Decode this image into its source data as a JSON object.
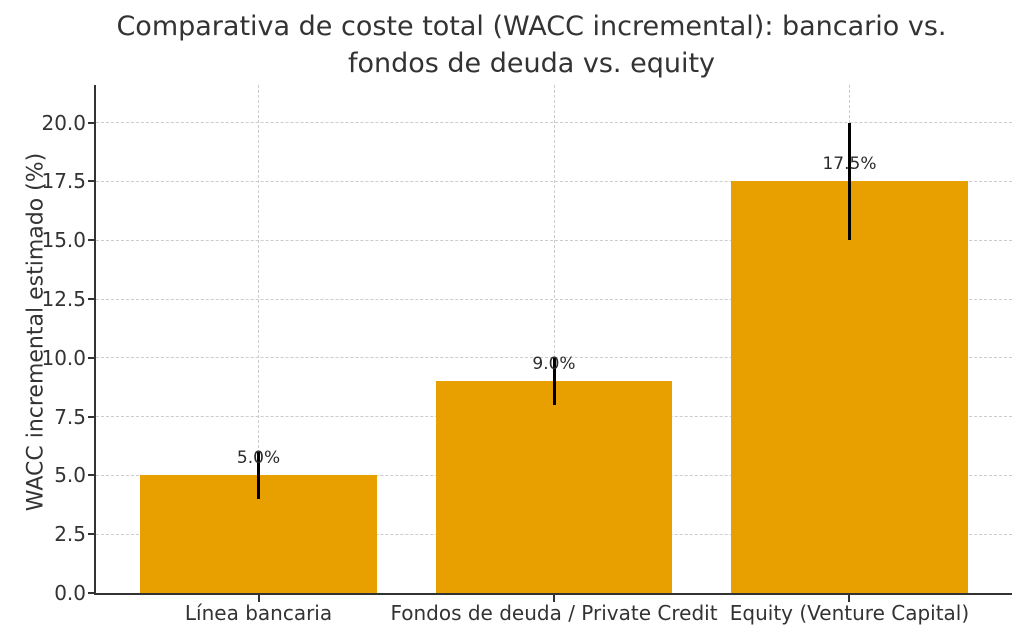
{
  "figure": {
    "title_line1": "Comparativa de coste total (WACC incremental): bancario vs.",
    "title_line2": "fondos de deuda vs. equity"
  },
  "chart_data": {
    "type": "bar",
    "title": "Comparativa de coste total (WACC incremental): bancario vs. fondos de deuda vs. equity",
    "categories": [
      "Línea bancaria",
      "Fondos de deuda / Private Credit",
      "Equity (Venture Capital)"
    ],
    "values": [
      5.0,
      9.0,
      17.5
    ],
    "error_bars": [
      1.0,
      1.0,
      2.5
    ],
    "value_labels": [
      "5.0%",
      "9.0%",
      "17.5%"
    ],
    "xlabel": "",
    "ylabel": "WACC incremental estimado (%)",
    "yticks": [
      0.0,
      2.5,
      5.0,
      7.5,
      10.0,
      12.5,
      15.0,
      17.5,
      20.0
    ],
    "ytick_labels": [
      "0.0",
      "2.5",
      "5.0",
      "7.5",
      "10.0",
      "12.5",
      "15.0",
      "17.5",
      "20.0"
    ],
    "ylim": [
      0,
      21.6
    ],
    "xlim": [
      -0.55,
      2.55
    ],
    "bar_width": 0.8,
    "grid": "both, dashed",
    "legend": "none",
    "colors": {
      "bar": "#E8A000",
      "error_bar": "#000000",
      "grid": "#cccccc",
      "spine": "#333333",
      "text": "#333333"
    }
  }
}
